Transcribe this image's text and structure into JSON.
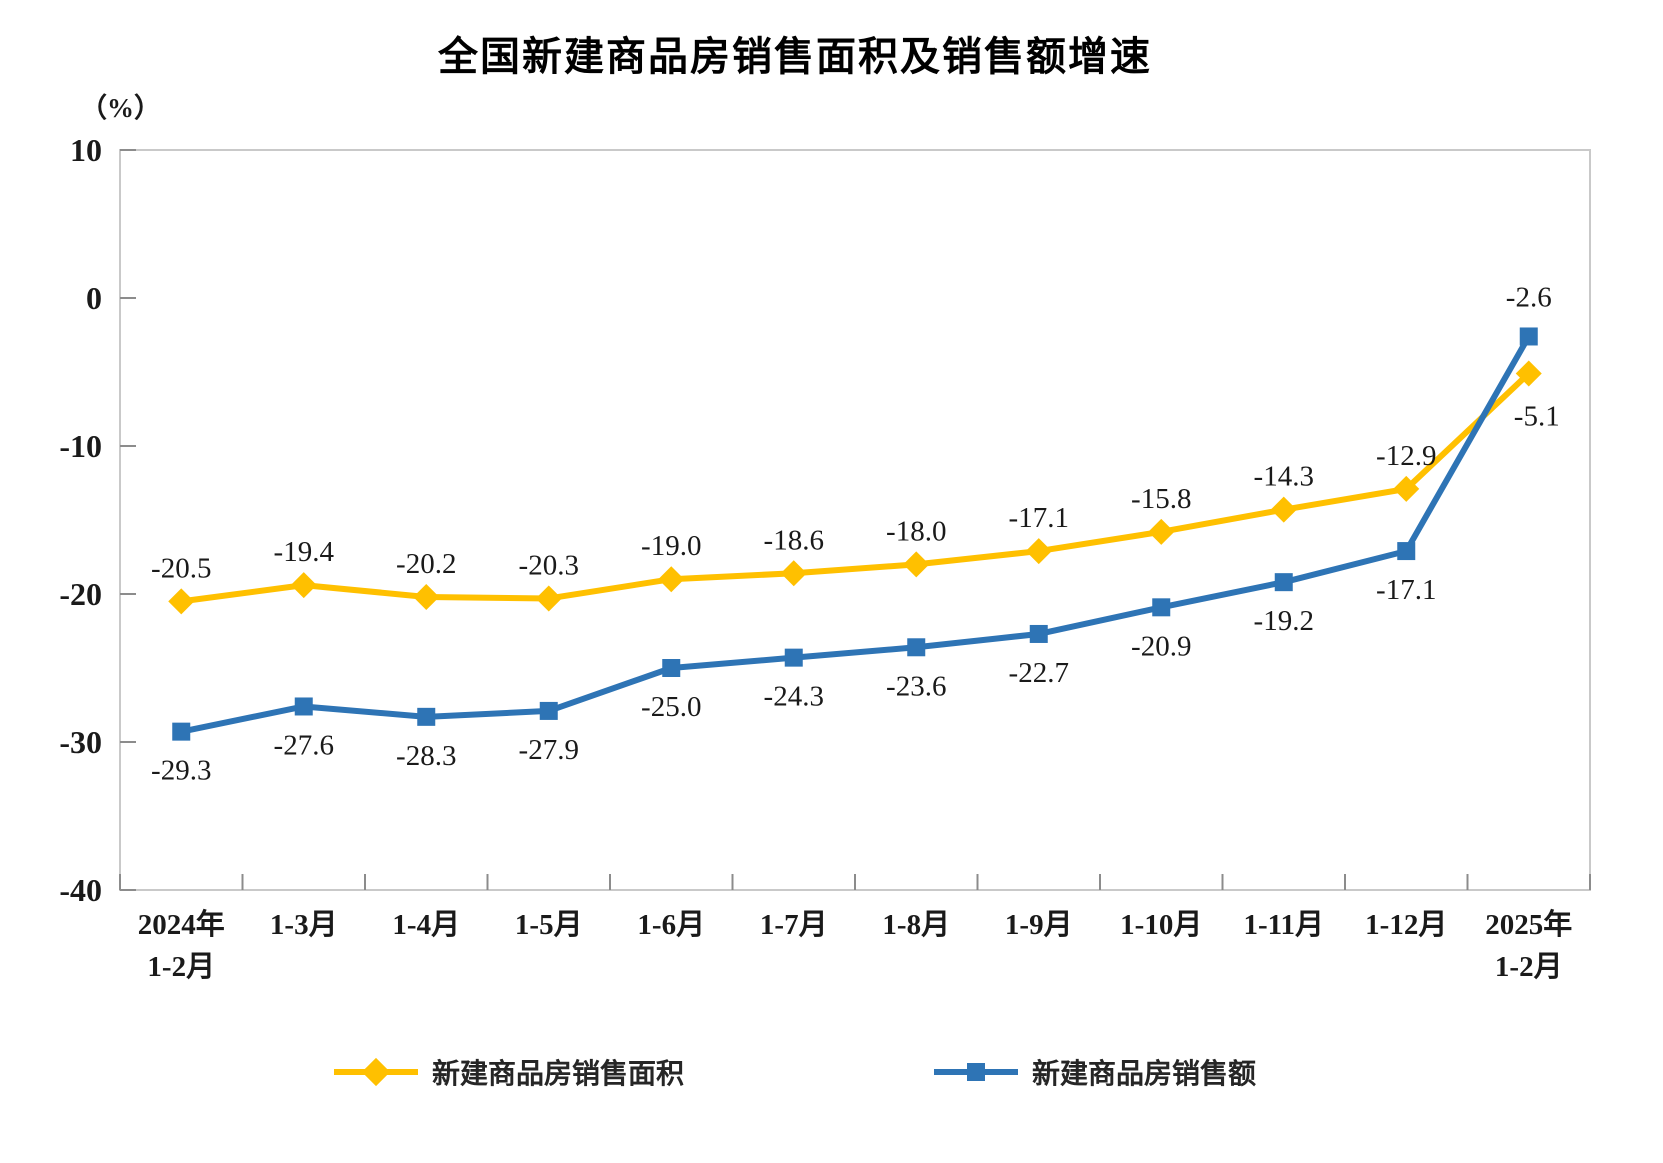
{
  "page": {
    "background": "#ffffff"
  },
  "chart": {
    "title": "全国新建商品房销售面积及销售额增速",
    "unit_label": "（%）"
  },
  "legend": {
    "items": [
      {
        "label": "新建商品房销售面积",
        "marker": "diamond",
        "color": "#FFC000"
      },
      {
        "label": "新建商品房销售额",
        "marker": "square",
        "color": "#2E74B5"
      }
    ]
  },
  "chart_data": {
    "type": "line",
    "title": "全国新建商品房销售面积及销售额增速",
    "ylabel": "（%）",
    "categories": [
      "2024年\n1-2月",
      "1-3月",
      "1-4月",
      "1-5月",
      "1-6月",
      "1-7月",
      "1-8月",
      "1-9月",
      "1-10月",
      "1-11月",
      "1-12月",
      "2025年\n1-2月"
    ],
    "series": [
      {
        "id": "sales-area",
        "name": "新建商品房销售面积",
        "color": "#FFC000",
        "marker": "diamond",
        "label_position": "above",
        "values": [
          -20.5,
          -19.4,
          -20.2,
          -20.3,
          -19.0,
          -18.6,
          -18.0,
          -17.1,
          -15.8,
          -14.3,
          -12.9,
          -5.1
        ]
      },
      {
        "id": "sales-value",
        "name": "新建商品房销售额",
        "color": "#2E74B5",
        "marker": "square",
        "label_position": "below",
        "values": [
          -29.3,
          -27.6,
          -28.3,
          -27.9,
          -25.0,
          -24.3,
          -23.6,
          -22.7,
          -20.9,
          -19.2,
          -17.1,
          -2.6
        ]
      }
    ],
    "yaxis": {
      "min": -40,
      "max": 10,
      "ticks": [
        10,
        0,
        -10,
        -20,
        -30,
        -40
      ]
    },
    "grid": false,
    "legend_position": "bottom",
    "colors": {
      "border": "#C9C9C9",
      "tick": "#8C8C8C",
      "text": "#1A1A1A"
    }
  }
}
